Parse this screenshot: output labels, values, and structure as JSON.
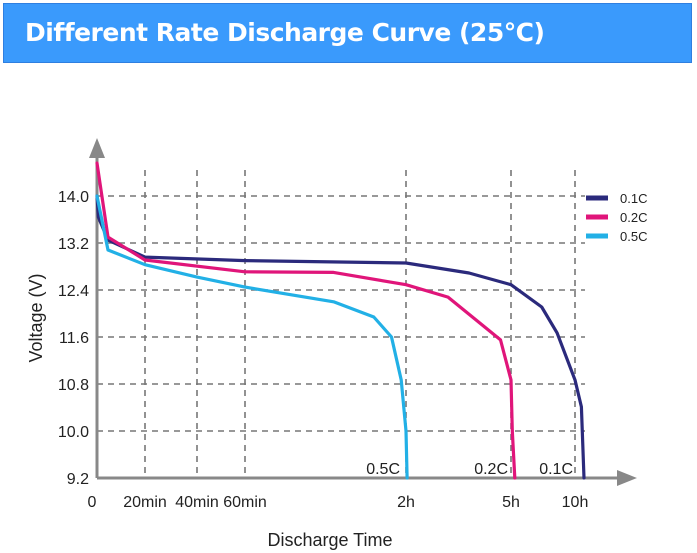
{
  "header": {
    "title": "Different Rate Discharge Curve (25℃)"
  },
  "chart_data": {
    "type": "line",
    "xlabel": "Discharge Time",
    "ylabel": "Voltage (V)",
    "x_ticks": [
      {
        "label": "0",
        "hours": 0
      },
      {
        "label": "20min",
        "hours": 0.333
      },
      {
        "label": "40min",
        "hours": 0.667
      },
      {
        "label": "60min",
        "hours": 1
      },
      {
        "label": "2h",
        "hours": 2
      },
      {
        "label": "5h",
        "hours": 5
      },
      {
        "label": "10h",
        "hours": 10
      }
    ],
    "x_scale": "non-linear (piecewise between ticks)",
    "y_ticks": [
      "14.0",
      "13.2",
      "12.4",
      "11.6",
      "10.8",
      "10.0",
      "9.2"
    ],
    "ylim": [
      9.2,
      14.0
    ],
    "grid": true,
    "legend": "top-right",
    "series": [
      {
        "name": "0.1C",
        "end_label": "0.1C",
        "color": "#2b2a7c",
        "points": [
          [
            0,
            14.0
          ],
          [
            0.01,
            13.64
          ],
          [
            0.076,
            13.25
          ],
          [
            0.333,
            12.96
          ],
          [
            1,
            12.9
          ],
          [
            2,
            12.86
          ],
          [
            3.8,
            12.69
          ],
          [
            5,
            12.49
          ],
          [
            7.4,
            12.11
          ],
          [
            8.6,
            11.67
          ],
          [
            10,
            10.87
          ],
          [
            10.5,
            10.41
          ],
          [
            10.7,
            9.2
          ]
        ]
      },
      {
        "name": "0.2C",
        "end_label": "0.2C",
        "color": "#e0157a",
        "points": [
          [
            0,
            14.56
          ],
          [
            0.076,
            13.3
          ],
          [
            0.333,
            12.91
          ],
          [
            1,
            12.71
          ],
          [
            1.55,
            12.7
          ],
          [
            2,
            12.49
          ],
          [
            3.2,
            12.28
          ],
          [
            4.7,
            11.55
          ],
          [
            5,
            10.87
          ],
          [
            5.1,
            10.0
          ],
          [
            5.3,
            9.2
          ]
        ]
      },
      {
        "name": "0.5C",
        "end_label": "0.5C",
        "color": "#22b0e6",
        "points": [
          [
            0,
            14.0
          ],
          [
            0.076,
            13.08
          ],
          [
            0.333,
            12.83
          ],
          [
            0.667,
            12.62
          ],
          [
            1,
            12.45
          ],
          [
            1.55,
            12.2
          ],
          [
            1.8,
            11.94
          ],
          [
            1.91,
            11.6
          ],
          [
            1.97,
            10.87
          ],
          [
            2.0,
            10.0
          ],
          [
            2.03,
            9.2
          ]
        ]
      }
    ]
  }
}
